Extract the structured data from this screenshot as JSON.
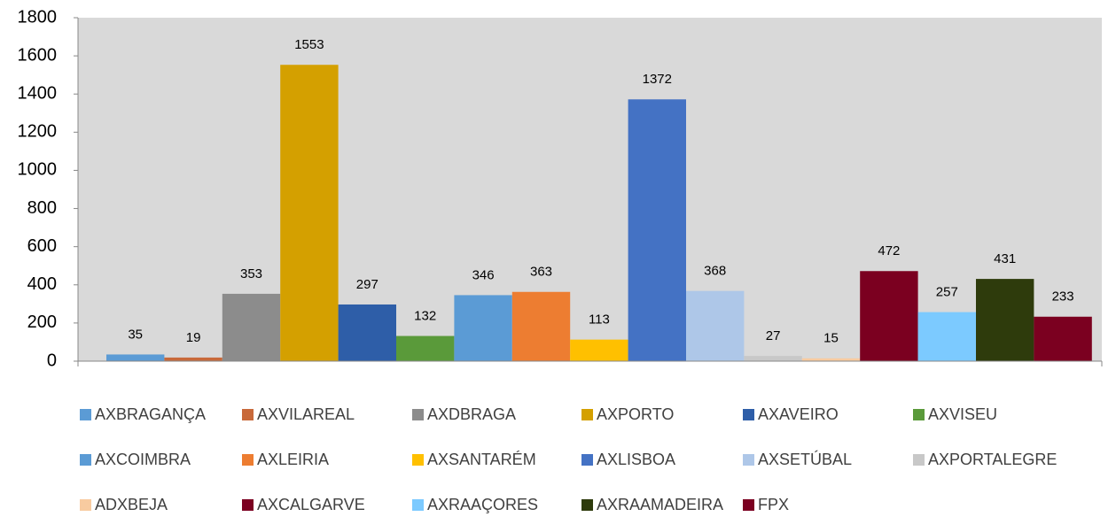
{
  "chart_data": {
    "type": "bar",
    "categories": [
      null
    ],
    "series": [
      {
        "name": "AXBRAGANÇA",
        "color": "#5b9bd5",
        "values": [
          35
        ]
      },
      {
        "name": "AXVILAREAL",
        "color": "#c8693a",
        "values": [
          19
        ]
      },
      {
        "name": "AXDBRAGA",
        "color": "#8c8c8c",
        "values": [
          353
        ]
      },
      {
        "name": "AXPORTO",
        "color": "#d4a000",
        "values": [
          1553
        ]
      },
      {
        "name": "AXAVEIRO",
        "color": "#2e5ea8",
        "values": [
          297
        ]
      },
      {
        "name": "AXVISEU",
        "color": "#5a9a3a",
        "values": [
          132
        ]
      },
      {
        "name": "AXCOIMBRA",
        "color": "#5b9bd5",
        "values": [
          346
        ]
      },
      {
        "name": "AXLEIRIA",
        "color": "#ed7d31",
        "values": [
          363
        ]
      },
      {
        "name": "AXSANTARÉM",
        "color": "#ffc000",
        "values": [
          113
        ]
      },
      {
        "name": "AXLISBOA",
        "color": "#4472c4",
        "values": [
          1372
        ]
      },
      {
        "name": "AXSETÚBAL",
        "color": "#aec7e8",
        "values": [
          368
        ]
      },
      {
        "name": "AXPORTALEGRE",
        "color": "#c8c8c8",
        "values": [
          27
        ]
      },
      {
        "name": "ADXBEJA",
        "color": "#f8cba0",
        "values": [
          15
        ]
      },
      {
        "name": "AXCALGARVE",
        "color": "#7b0020",
        "values": [
          472
        ]
      },
      {
        "name": "AXRAAÇORES",
        "color": "#7ccaff",
        "values": [
          257
        ]
      },
      {
        "name": "AXRAAMADEIRA",
        "color": "#2e3b0c",
        "values": [
          431
        ]
      },
      {
        "name": "FPX",
        "color": "#7b0020",
        "values": [
          233
        ]
      }
    ],
    "ylim": [
      0,
      1800
    ],
    "yticks": [
      0,
      200,
      400,
      600,
      800,
      1000,
      1200,
      1400,
      1600,
      1800
    ],
    "grid": false,
    "legend": "bottom",
    "plot_background": "#d9d9d9"
  }
}
